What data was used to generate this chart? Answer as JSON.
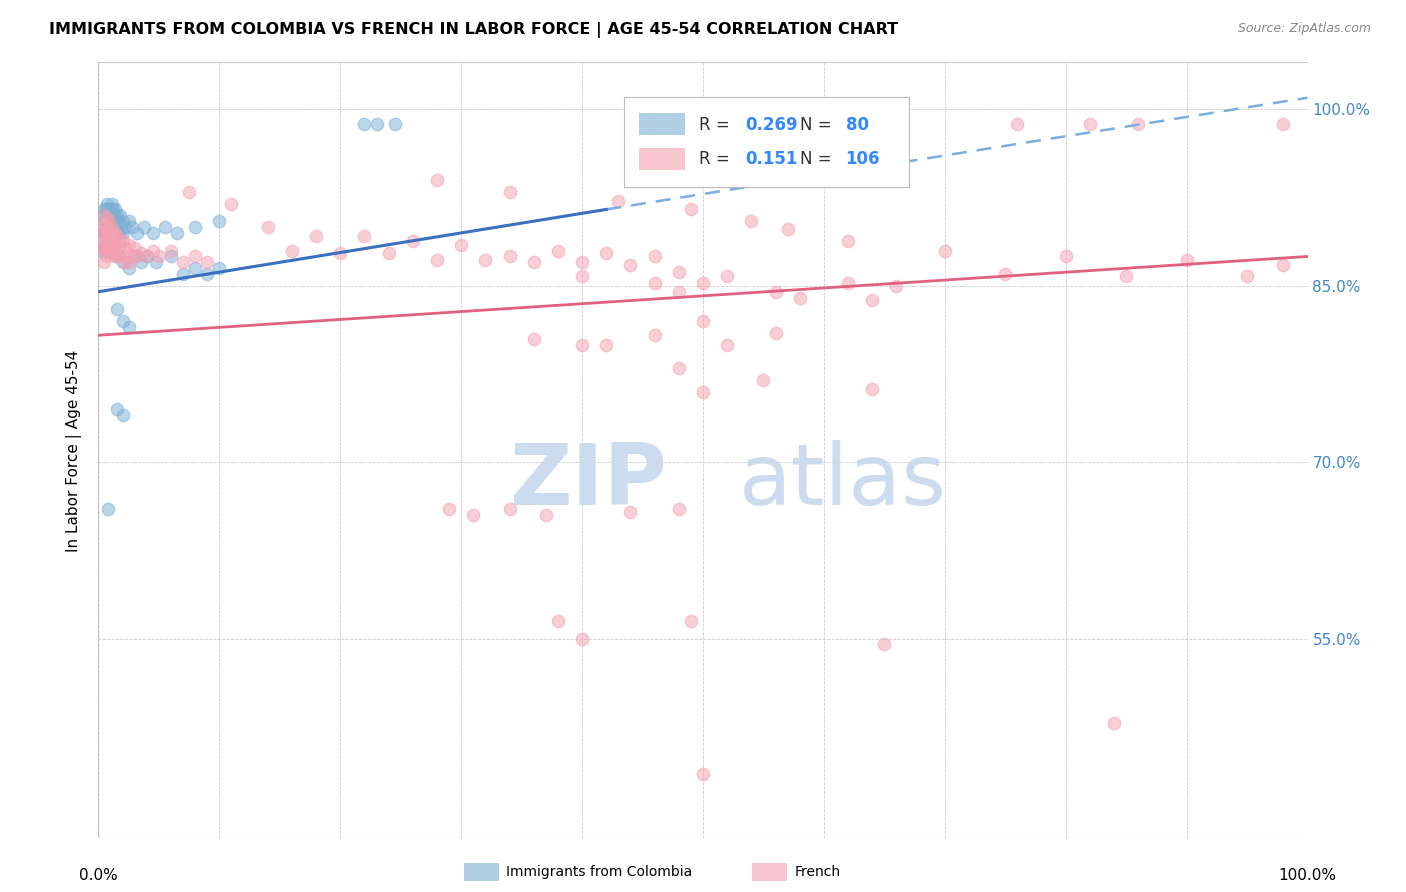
{
  "title": "IMMIGRANTS FROM COLOMBIA VS FRENCH IN LABOR FORCE | AGE 45-54 CORRELATION CHART",
  "source": "Source: ZipAtlas.com",
  "ylabel": "In Labor Force | Age 45-54",
  "ytick_values": [
    1.0,
    0.85,
    0.7,
    0.55
  ],
  "xlim": [
    0.0,
    1.0
  ],
  "ylim": [
    0.38,
    1.04
  ],
  "colombia_color": "#7BAFD4",
  "french_color": "#F4A0B0",
  "colombia_R": 0.269,
  "colombia_N": 80,
  "french_R": 0.151,
  "french_N": 106,
  "colombia_line_solid": [
    [
      0.0,
      0.845
    ],
    [
      0.42,
      0.915
    ]
  ],
  "colombia_line_dashed": [
    [
      0.42,
      0.915
    ],
    [
      1.0,
      1.01
    ]
  ],
  "french_line": [
    [
      0.0,
      0.808
    ],
    [
      1.0,
      0.875
    ]
  ],
  "colombia_points": [
    [
      0.003,
      0.895
    ],
    [
      0.003,
      0.88
    ],
    [
      0.004,
      0.91
    ],
    [
      0.004,
      0.895
    ],
    [
      0.005,
      0.915
    ],
    [
      0.005,
      0.905
    ],
    [
      0.005,
      0.895
    ],
    [
      0.005,
      0.885
    ],
    [
      0.006,
      0.915
    ],
    [
      0.006,
      0.905
    ],
    [
      0.006,
      0.895
    ],
    [
      0.006,
      0.88
    ],
    [
      0.007,
      0.92
    ],
    [
      0.007,
      0.91
    ],
    [
      0.007,
      0.9
    ],
    [
      0.007,
      0.89
    ],
    [
      0.008,
      0.915
    ],
    [
      0.008,
      0.905
    ],
    [
      0.008,
      0.895
    ],
    [
      0.008,
      0.885
    ],
    [
      0.009,
      0.91
    ],
    [
      0.009,
      0.9
    ],
    [
      0.009,
      0.892
    ],
    [
      0.01,
      0.915
    ],
    [
      0.01,
      0.905
    ],
    [
      0.01,
      0.895
    ],
    [
      0.011,
      0.92
    ],
    [
      0.011,
      0.91
    ],
    [
      0.011,
      0.9
    ],
    [
      0.012,
      0.915
    ],
    [
      0.012,
      0.905
    ],
    [
      0.012,
      0.895
    ],
    [
      0.013,
      0.91
    ],
    [
      0.013,
      0.9
    ],
    [
      0.014,
      0.915
    ],
    [
      0.014,
      0.905
    ],
    [
      0.015,
      0.91
    ],
    [
      0.015,
      0.895
    ],
    [
      0.016,
      0.905
    ],
    [
      0.016,
      0.895
    ],
    [
      0.018,
      0.91
    ],
    [
      0.018,
      0.895
    ],
    [
      0.02,
      0.905
    ],
    [
      0.02,
      0.895
    ],
    [
      0.022,
      0.9
    ],
    [
      0.025,
      0.905
    ],
    [
      0.028,
      0.9
    ],
    [
      0.032,
      0.895
    ],
    [
      0.038,
      0.9
    ],
    [
      0.045,
      0.895
    ],
    [
      0.055,
      0.9
    ],
    [
      0.065,
      0.895
    ],
    [
      0.08,
      0.9
    ],
    [
      0.1,
      0.905
    ],
    [
      0.014,
      0.875
    ],
    [
      0.02,
      0.87
    ],
    [
      0.025,
      0.865
    ],
    [
      0.03,
      0.875
    ],
    [
      0.035,
      0.87
    ],
    [
      0.04,
      0.875
    ],
    [
      0.048,
      0.87
    ],
    [
      0.06,
      0.875
    ],
    [
      0.07,
      0.86
    ],
    [
      0.08,
      0.865
    ],
    [
      0.09,
      0.86
    ],
    [
      0.1,
      0.865
    ],
    [
      0.015,
      0.83
    ],
    [
      0.02,
      0.82
    ],
    [
      0.025,
      0.815
    ],
    [
      0.015,
      0.745
    ],
    [
      0.02,
      0.74
    ],
    [
      0.008,
      0.66
    ],
    [
      0.22,
      0.988
    ],
    [
      0.23,
      0.988
    ],
    [
      0.245,
      0.988
    ]
  ],
  "french_points": [
    [
      0.003,
      0.895
    ],
    [
      0.003,
      0.882
    ],
    [
      0.004,
      0.902
    ],
    [
      0.004,
      0.885
    ],
    [
      0.005,
      0.91
    ],
    [
      0.005,
      0.895
    ],
    [
      0.005,
      0.882
    ],
    [
      0.005,
      0.87
    ],
    [
      0.006,
      0.902
    ],
    [
      0.006,
      0.888
    ],
    [
      0.006,
      0.875
    ],
    [
      0.007,
      0.908
    ],
    [
      0.007,
      0.892
    ],
    [
      0.007,
      0.878
    ],
    [
      0.008,
      0.898
    ],
    [
      0.008,
      0.882
    ],
    [
      0.009,
      0.905
    ],
    [
      0.009,
      0.888
    ],
    [
      0.01,
      0.895
    ],
    [
      0.01,
      0.88
    ],
    [
      0.011,
      0.9
    ],
    [
      0.011,
      0.885
    ],
    [
      0.012,
      0.895
    ],
    [
      0.012,
      0.878
    ],
    [
      0.013,
      0.888
    ],
    [
      0.013,
      0.878
    ],
    [
      0.014,
      0.895
    ],
    [
      0.014,
      0.882
    ],
    [
      0.015,
      0.892
    ],
    [
      0.015,
      0.875
    ],
    [
      0.016,
      0.888
    ],
    [
      0.016,
      0.875
    ],
    [
      0.018,
      0.885
    ],
    [
      0.018,
      0.875
    ],
    [
      0.02,
      0.888
    ],
    [
      0.02,
      0.875
    ],
    [
      0.022,
      0.882
    ],
    [
      0.022,
      0.87
    ],
    [
      0.025,
      0.885
    ],
    [
      0.025,
      0.87
    ],
    [
      0.028,
      0.875
    ],
    [
      0.03,
      0.882
    ],
    [
      0.032,
      0.875
    ],
    [
      0.035,
      0.878
    ],
    [
      0.04,
      0.875
    ],
    [
      0.045,
      0.88
    ],
    [
      0.05,
      0.875
    ],
    [
      0.06,
      0.88
    ],
    [
      0.07,
      0.87
    ],
    [
      0.08,
      0.875
    ],
    [
      0.09,
      0.87
    ],
    [
      0.075,
      0.93
    ],
    [
      0.11,
      0.92
    ],
    [
      0.14,
      0.9
    ],
    [
      0.16,
      0.88
    ],
    [
      0.18,
      0.892
    ],
    [
      0.2,
      0.878
    ],
    [
      0.22,
      0.892
    ],
    [
      0.24,
      0.878
    ],
    [
      0.26,
      0.888
    ],
    [
      0.28,
      0.872
    ],
    [
      0.3,
      0.885
    ],
    [
      0.32,
      0.872
    ],
    [
      0.34,
      0.875
    ],
    [
      0.36,
      0.87
    ],
    [
      0.38,
      0.88
    ],
    [
      0.4,
      0.87
    ],
    [
      0.42,
      0.878
    ],
    [
      0.44,
      0.868
    ],
    [
      0.46,
      0.875
    ],
    [
      0.48,
      0.862
    ],
    [
      0.28,
      0.94
    ],
    [
      0.34,
      0.93
    ],
    [
      0.43,
      0.922
    ],
    [
      0.49,
      0.915
    ],
    [
      0.54,
      0.905
    ],
    [
      0.57,
      0.898
    ],
    [
      0.4,
      0.858
    ],
    [
      0.46,
      0.852
    ],
    [
      0.48,
      0.845
    ],
    [
      0.5,
      0.852
    ],
    [
      0.52,
      0.858
    ],
    [
      0.56,
      0.845
    ],
    [
      0.58,
      0.84
    ],
    [
      0.62,
      0.852
    ],
    [
      0.64,
      0.838
    ],
    [
      0.66,
      0.85
    ],
    [
      0.62,
      0.888
    ],
    [
      0.7,
      0.88
    ],
    [
      0.75,
      0.86
    ],
    [
      0.8,
      0.875
    ],
    [
      0.85,
      0.858
    ],
    [
      0.9,
      0.872
    ],
    [
      0.95,
      0.858
    ],
    [
      0.98,
      0.868
    ],
    [
      0.76,
      0.988
    ],
    [
      0.82,
      0.988
    ],
    [
      0.86,
      0.988
    ],
    [
      0.98,
      0.988
    ],
    [
      0.5,
      0.82
    ],
    [
      0.56,
      0.81
    ],
    [
      0.46,
      0.808
    ],
    [
      0.4,
      0.8
    ],
    [
      0.36,
      0.805
    ],
    [
      0.42,
      0.8
    ],
    [
      0.52,
      0.8
    ],
    [
      0.48,
      0.78
    ],
    [
      0.55,
      0.77
    ],
    [
      0.5,
      0.76
    ],
    [
      0.64,
      0.762
    ],
    [
      0.29,
      0.66
    ],
    [
      0.34,
      0.66
    ],
    [
      0.44,
      0.658
    ],
    [
      0.48,
      0.66
    ],
    [
      0.31,
      0.655
    ],
    [
      0.37,
      0.655
    ],
    [
      0.38,
      0.565
    ],
    [
      0.4,
      0.55
    ],
    [
      0.49,
      0.565
    ],
    [
      0.5,
      0.435
    ],
    [
      0.65,
      0.545
    ],
    [
      0.84,
      0.478
    ]
  ]
}
